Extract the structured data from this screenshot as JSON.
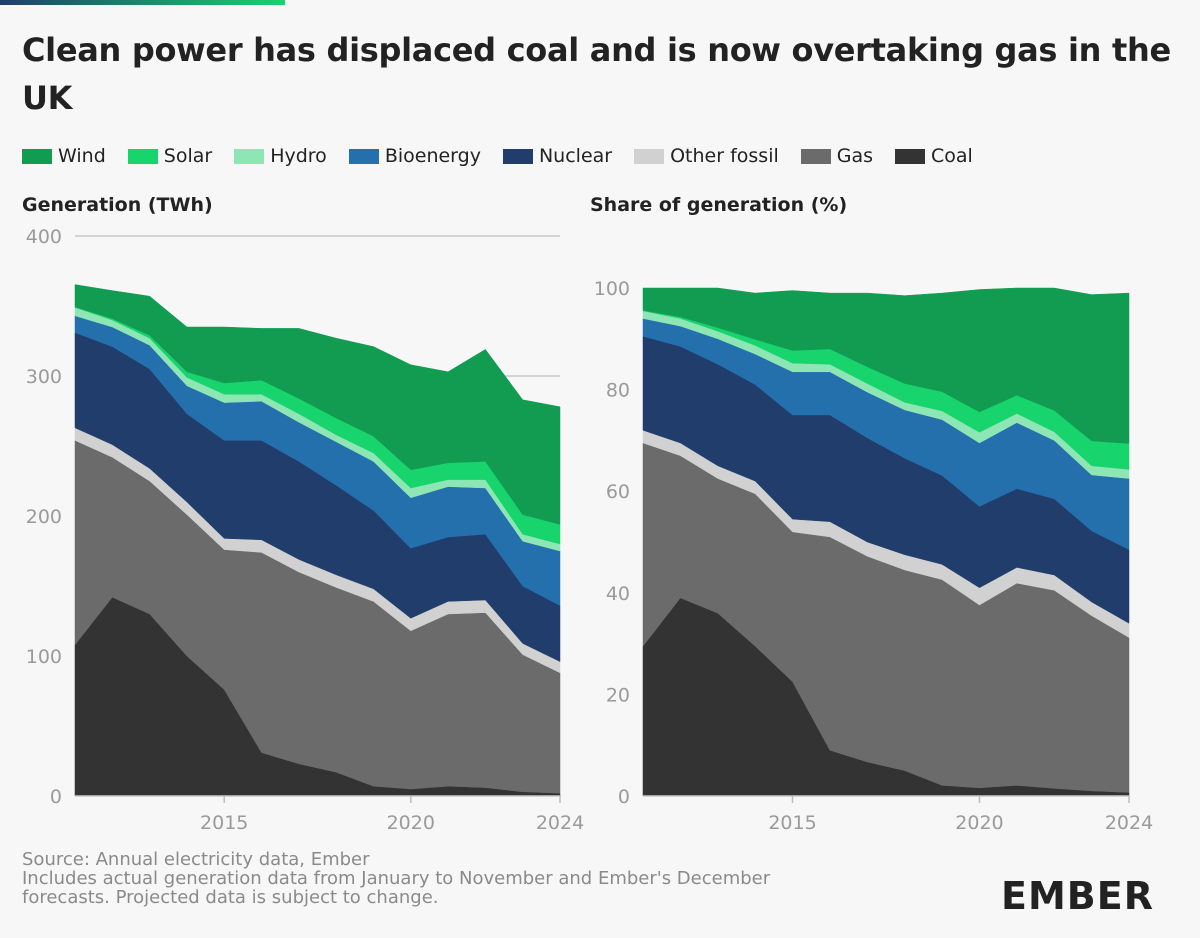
{
  "title": "Clean power has displaced coal and is now overtaking gas in the UK",
  "colors": {
    "Wind": "#119c52",
    "Solar": "#17d46d",
    "Hydro": "#8de6b4",
    "Bioenergy": "#2370ad",
    "Nuclear": "#203d6c",
    "Other fossil": "#d1d1d1",
    "Gas": "#6b6b6b",
    "Coal": "#333333",
    "accent_bar_start": "#203d6c",
    "accent_bar_end": "#17d46d"
  },
  "legend": [
    "Wind",
    "Solar",
    "Hydro",
    "Bioenergy",
    "Nuclear",
    "Other fossil",
    "Gas",
    "Coal"
  ],
  "source": {
    "line1": "Source: Annual electricity data, Ember",
    "line2": "Includes actual generation data from January to November and Ember's December",
    "line3": "forecasts. Projected data is subject to change."
  },
  "logo": "EMBER",
  "chart_data": [
    {
      "type": "area",
      "stacked": true,
      "title": "Generation (TWh)",
      "x": [
        2011,
        2012,
        2013,
        2014,
        2015,
        2016,
        2017,
        2018,
        2019,
        2020,
        2021,
        2022,
        2023,
        2024
      ],
      "ylim": [
        0,
        400
      ],
      "yticks": [
        0,
        100,
        200,
        300,
        400
      ],
      "xticks": [
        "2015",
        "2020",
        "2024"
      ],
      "grid": true,
      "series": [
        {
          "name": "Coal",
          "values": [
            108,
            142,
            130,
            100,
            76,
            31,
            23,
            17,
            7,
            5,
            7,
            6,
            3,
            2
          ]
        },
        {
          "name": "Gas",
          "values": [
            146,
            100,
            95,
            101,
            100,
            143,
            137,
            132,
            132,
            113,
            123,
            125,
            98,
            86
          ]
        },
        {
          "name": "Other fossil",
          "values": [
            9,
            9,
            9,
            9,
            8,
            9,
            9,
            9,
            9,
            9,
            9,
            9,
            8,
            8
          ]
        },
        {
          "name": "Nuclear",
          "values": [
            68,
            70,
            71,
            63,
            70,
            71,
            70,
            64,
            56,
            50,
            46,
            47,
            41,
            40
          ]
        },
        {
          "name": "Bioenergy",
          "values": [
            12,
            14,
            17,
            20,
            27,
            28,
            28,
            31,
            35,
            36,
            36,
            33,
            32,
            39
          ]
        },
        {
          "name": "Hydro",
          "values": [
            6,
            5,
            5,
            6,
            6,
            5,
            6,
            5,
            6,
            7,
            5,
            6,
            5,
            5
          ]
        },
        {
          "name": "Solar",
          "values": [
            0.3,
            1,
            2,
            4,
            8,
            10,
            11,
            12,
            12,
            13,
            12,
            13,
            14,
            14
          ]
        },
        {
          "name": "Wind",
          "values": [
            16,
            20,
            28,
            32,
            40,
            37,
            50,
            57,
            64,
            75,
            65,
            80,
            82,
            84
          ]
        }
      ]
    },
    {
      "type": "area",
      "stacked": true,
      "title": "Share of generation (%)",
      "x": [
        2011,
        2012,
        2013,
        2014,
        2015,
        2016,
        2017,
        2018,
        2019,
        2020,
        2021,
        2022,
        2023,
        2024
      ],
      "ylim": [
        0,
        100
      ],
      "yticks": [
        0,
        20,
        40,
        60,
        80,
        100
      ],
      "xticks": [
        "2015",
        "2020",
        "2024"
      ],
      "grid": false,
      "series": [
        {
          "name": "Coal",
          "values": [
            29.5,
            39,
            36,
            29.5,
            22.5,
            9,
            6.7,
            5,
            2.1,
            1.6,
            2.1,
            1.5,
            1.0,
            0.7
          ]
        },
        {
          "name": "Gas",
          "values": [
            40,
            28,
            26.5,
            30,
            29.5,
            42,
            40.5,
            39.5,
            40.5,
            36,
            39.8,
            39,
            34.5,
            30.5
          ]
        },
        {
          "name": "Other fossil",
          "values": [
            2.5,
            2.5,
            2.5,
            2.5,
            2.5,
            3,
            2.8,
            3,
            3,
            3.4,
            3.1,
            3,
            2.7,
            2.8
          ]
        },
        {
          "name": "Nuclear",
          "values": [
            18.5,
            19,
            20,
            19,
            20.5,
            21,
            20.5,
            19,
            17.5,
            16,
            15.5,
            15,
            14,
            14.5
          ]
        },
        {
          "name": "Bioenergy",
          "values": [
            3.5,
            4,
            5,
            6,
            8.5,
            8.5,
            9,
            9.5,
            11,
            12.5,
            13,
            11.5,
            11,
            14
          ]
        },
        {
          "name": "Hydro",
          "values": [
            1.5,
            1.5,
            1.5,
            1.7,
            1.7,
            1.5,
            1.7,
            1.5,
            1.7,
            2.1,
            1.8,
            1.7,
            1.8,
            1.8
          ]
        },
        {
          "name": "Solar",
          "values": [
            0.1,
            0.3,
            0.7,
            1.2,
            2.5,
            3,
            3.3,
            3.7,
            3.8,
            4,
            3.6,
            4.2,
            4.9,
            5.1
          ]
        },
        {
          "name": "Wind",
          "values": [
            4.4,
            5.7,
            7.8,
            9.1,
            11.8,
            11,
            14.5,
            17.3,
            19.4,
            24.1,
            21.1,
            24.1,
            28.8,
            29.6
          ]
        }
      ]
    }
  ]
}
